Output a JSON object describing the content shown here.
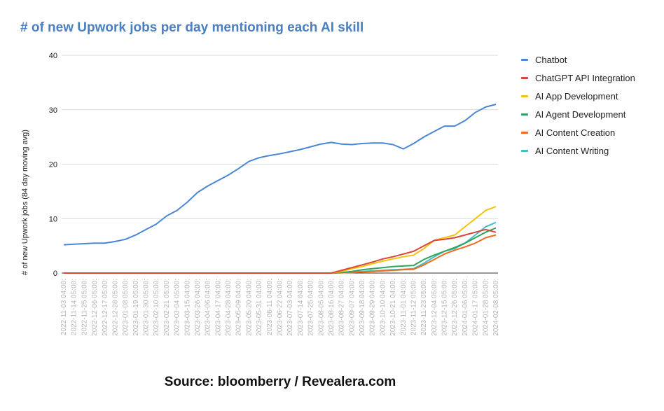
{
  "title": "# of new Upwork jobs per day mentioning each AI skill",
  "source": "Source: bloomberry / Revealera.com",
  "chart_data": {
    "type": "line",
    "title": "# of new Upwork jobs per day mentioning each AI skill",
    "xlabel": "",
    "ylabel": "# of new Upwork jobs (84 day moving avg)",
    "ylim": [
      0,
      40
    ],
    "yticks": [
      0,
      10,
      20,
      30,
      40
    ],
    "grid": true,
    "legend_position": "right",
    "categories": [
      "2022-11-03 04:00:",
      "2022-11-14 05:00:",
      "2022-11-25 05:00:",
      "2022-12-06 05:00:",
      "2022-12-17 05:00:",
      "2022-12-28 05:00:",
      "2023-01-08 05:00:",
      "2023-01-19 05:00:",
      "2023-01-30 05:00:",
      "2023-02-10 05:00:",
      "2023-02-21 05:00:",
      "2023-03-04 05:00:",
      "2023-03-15 04:00:",
      "2023-03-26 04:00:",
      "2023-04-06 04:00:",
      "2023-04-17 04:00:",
      "2023-04-28 04:00:",
      "2023-05-09 04:00:",
      "2023-05-20 04:00:",
      "2023-05-31 04:00:",
      "2023-06-11 04:00:",
      "2023-06-22 04:00:",
      "2023-07-03 04:00:",
      "2023-07-14 04:00:",
      "2023-07-25 04:00:",
      "2023-08-05 04:00:",
      "2023-08-16 04:00:",
      "2023-08-27 04:00:",
      "2023-09-07 04:00:",
      "2023-09-18 04:00:",
      "2023-09-29 04:00:",
      "2023-10-10 04:00:",
      "2023-10-21 04:00:",
      "2023-11-01 04:00:",
      "2023-11-12 05:00:",
      "2023-11-23 05:00:",
      "2023-12-04 05:00:",
      "2023-12-15 05:00:",
      "2023-12-26 05:00:",
      "2024-01-06 05:00:",
      "2024-01-17 05:00:",
      "2024-01-28 05:00:",
      "2024-02-08 05:00:"
    ],
    "series": [
      {
        "name": "Chatbot",
        "color": "#4a86d6",
        "values": [
          5.2,
          5.3,
          5.4,
          5.5,
          5.5,
          5.8,
          6.2,
          7.0,
          8.0,
          9.0,
          10.5,
          11.5,
          13.0,
          14.8,
          16.0,
          17.0,
          18.0,
          19.2,
          20.5,
          21.2,
          21.6,
          21.9,
          22.3,
          22.7,
          23.2,
          23.7,
          24.0,
          23.7,
          23.6,
          23.8,
          23.9,
          23.9,
          23.6,
          22.8,
          23.8,
          25.0,
          26.0,
          27.0,
          27.0,
          28.0,
          29.5,
          30.5,
          31.0
        ]
      },
      {
        "name": "ChatGPT API Integration",
        "color": "#db4437",
        "values": [
          0,
          0,
          0,
          0,
          0,
          0,
          0,
          0,
          0,
          0,
          0,
          0,
          0,
          0,
          0,
          0,
          0,
          0,
          0,
          0,
          0,
          0,
          0,
          0,
          0,
          0,
          0,
          0.5,
          1.0,
          1.5,
          2.0,
          2.6,
          3.0,
          3.5,
          4.0,
          5.0,
          6.0,
          6.2,
          6.5,
          7.0,
          7.5,
          8.0,
          7.5
        ]
      },
      {
        "name": "AI App Development",
        "color": "#f4c20d",
        "values": [
          0,
          0,
          0,
          0,
          0,
          0,
          0,
          0,
          0,
          0,
          0,
          0,
          0,
          0,
          0,
          0,
          0,
          0,
          0,
          0,
          0,
          0,
          0,
          0,
          0,
          0,
          0,
          0.3,
          0.8,
          1.2,
          1.7,
          2.2,
          2.6,
          3.0,
          3.3,
          4.5,
          6.0,
          6.5,
          7.0,
          8.5,
          10.0,
          11.5,
          12.2
        ]
      },
      {
        "name": "AI Agent Development",
        "color": "#2ea55c",
        "values": [
          0,
          0,
          0,
          0,
          0,
          0,
          0,
          0,
          0,
          0,
          0,
          0,
          0,
          0,
          0,
          0,
          0,
          0,
          0,
          0,
          0,
          0,
          0,
          0,
          0,
          0,
          0,
          0.1,
          0.3,
          0.6,
          0.8,
          1.0,
          1.2,
          1.3,
          1.4,
          2.5,
          3.3,
          4.0,
          4.7,
          5.5,
          6.5,
          7.5,
          8.3
        ]
      },
      {
        "name": "AI Content Creation",
        "color": "#f26b1d",
        "values": [
          0,
          0,
          0,
          0,
          0,
          0,
          0,
          0,
          0,
          0,
          0,
          0,
          0,
          0,
          0,
          0,
          0,
          0,
          0,
          0,
          0,
          0,
          0,
          0,
          0,
          0,
          0,
          0.05,
          0.1,
          0.2,
          0.3,
          0.4,
          0.5,
          0.6,
          0.7,
          1.5,
          2.5,
          3.5,
          4.2,
          4.8,
          5.5,
          6.5,
          7.0
        ]
      },
      {
        "name": "AI Content Writing",
        "color": "#42bec4",
        "values": [
          0,
          0,
          0,
          0,
          0,
          0,
          0,
          0,
          0,
          0,
          0,
          0,
          0,
          0,
          0,
          0,
          0,
          0,
          0,
          0,
          0,
          0,
          0,
          0,
          0,
          0,
          0,
          0.1,
          0.2,
          0.3,
          0.4,
          0.5,
          0.6,
          0.7,
          0.8,
          1.8,
          3.0,
          4.0,
          4.5,
          5.5,
          7.0,
          8.5,
          9.3
        ]
      }
    ]
  }
}
